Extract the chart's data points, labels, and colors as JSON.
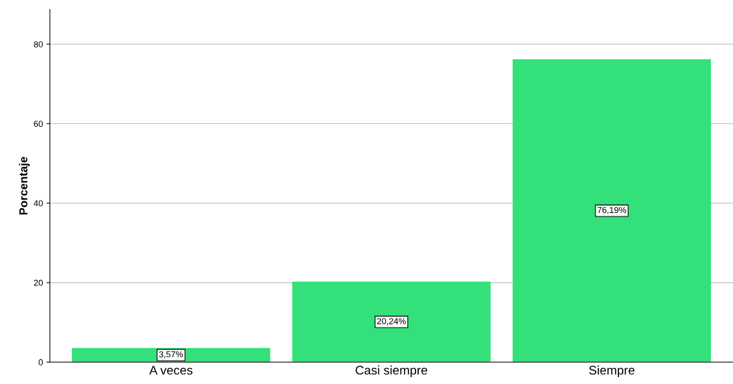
{
  "chart_data": {
    "type": "bar",
    "ylabel": "Porcentaje",
    "categories": [
      "A veces",
      "Casi siempre",
      "Siempre"
    ],
    "values": [
      3.57,
      20.24,
      76.19
    ],
    "value_labels": [
      "3,57%",
      "20,24%",
      "76,19%"
    ],
    "color": "#33e07a",
    "ylim": [
      0,
      88.7
    ],
    "yticks": [
      0,
      20,
      40,
      60,
      80
    ],
    "grid": "y"
  }
}
